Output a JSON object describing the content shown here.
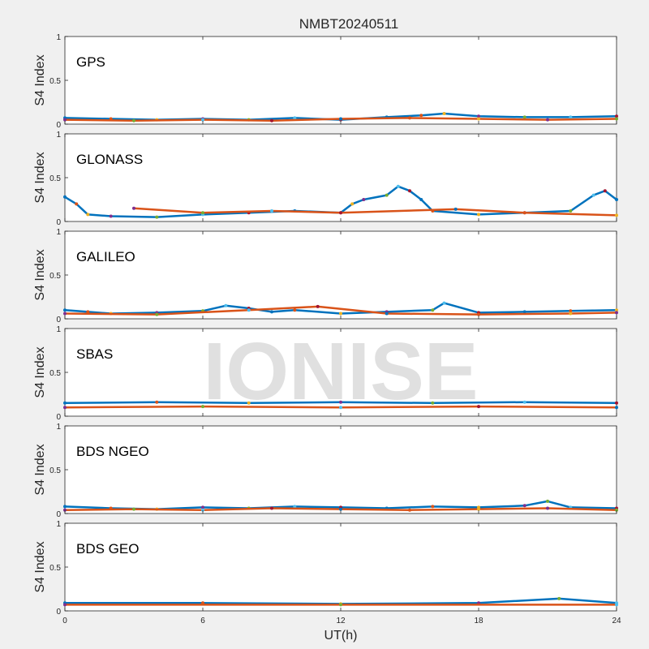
{
  "figure": {
    "title": "NMBT20240511",
    "watermark": "IONISE",
    "xlabel": "UT(h)",
    "ylabel": "S4 Index",
    "xticks": [
      "0",
      "6",
      "12",
      "18",
      "24"
    ],
    "yticks": [
      "0",
      "0.5",
      "1"
    ]
  },
  "colors": [
    "#0072BD",
    "#D95319",
    "#EDB120",
    "#7E2F8E",
    "#77AC30",
    "#4DBEEE",
    "#A2142F"
  ],
  "chart_data": [
    {
      "type": "scatter",
      "title": "GPS",
      "xlabel": "UT(h)",
      "ylabel": "S4 Index",
      "xlim": [
        0,
        24
      ],
      "ylim": [
        0,
        1
      ],
      "series": [
        {
          "x": [
            0,
            2,
            4,
            6,
            8,
            10,
            12,
            14,
            15.5,
            16.5,
            18,
            20,
            22,
            24
          ],
          "y": [
            0.07,
            0.06,
            0.05,
            0.06,
            0.05,
            0.07,
            0.05,
            0.08,
            0.1,
            0.12,
            0.09,
            0.08,
            0.08,
            0.09
          ]
        },
        {
          "x": [
            0,
            3,
            6,
            9,
            12,
            15,
            18,
            21,
            24
          ],
          "y": [
            0.05,
            0.04,
            0.05,
            0.04,
            0.06,
            0.07,
            0.06,
            0.05,
            0.06
          ]
        }
      ]
    },
    {
      "type": "scatter",
      "title": "GLONASS",
      "xlabel": "UT(h)",
      "ylabel": "S4 Index",
      "xlim": [
        0,
        24
      ],
      "ylim": [
        0,
        1
      ],
      "series": [
        {
          "x": [
            0,
            0.5,
            1,
            2,
            4,
            6,
            8,
            10,
            12,
            12.5,
            13,
            14,
            14.5,
            15,
            15.5,
            16,
            18,
            20,
            22,
            23,
            23.5,
            24
          ],
          "y": [
            0.28,
            0.2,
            0.08,
            0.06,
            0.05,
            0.08,
            0.1,
            0.12,
            0.1,
            0.2,
            0.25,
            0.3,
            0.4,
            0.35,
            0.25,
            0.12,
            0.08,
            0.1,
            0.12,
            0.3,
            0.35,
            0.25
          ]
        },
        {
          "x": [
            3,
            6,
            9,
            12,
            17,
            20,
            24
          ],
          "y": [
            0.15,
            0.1,
            0.12,
            0.1,
            0.14,
            0.1,
            0.07
          ]
        }
      ]
    },
    {
      "type": "scatter",
      "title": "GALILEO",
      "xlabel": "UT(h)",
      "ylabel": "S4 Index",
      "xlim": [
        0,
        24
      ],
      "ylim": [
        0,
        1
      ],
      "series": [
        {
          "x": [
            0,
            1,
            2,
            4,
            6,
            7,
            8,
            9,
            10,
            12,
            14,
            16,
            16.5,
            18,
            20,
            22,
            24
          ],
          "y": [
            0.1,
            0.08,
            0.06,
            0.07,
            0.09,
            0.15,
            0.12,
            0.08,
            0.1,
            0.06,
            0.08,
            0.1,
            0.18,
            0.07,
            0.08,
            0.09,
            0.1
          ]
        },
        {
          "x": [
            0,
            4,
            8,
            11,
            14,
            18,
            22,
            24
          ],
          "y": [
            0.06,
            0.05,
            0.1,
            0.14,
            0.06,
            0.05,
            0.06,
            0.07
          ]
        }
      ]
    },
    {
      "type": "scatter",
      "title": "SBAS",
      "xlabel": "UT(h)",
      "ylabel": "S4 Index",
      "xlim": [
        0,
        24
      ],
      "ylim": [
        0,
        1
      ],
      "series": [
        {
          "x": [
            0,
            4,
            8,
            12,
            16,
            20,
            24
          ],
          "y": [
            0.15,
            0.16,
            0.15,
            0.16,
            0.15,
            0.16,
            0.15
          ]
        },
        {
          "x": [
            0,
            6,
            12,
            18,
            24
          ],
          "y": [
            0.1,
            0.11,
            0.1,
            0.11,
            0.1
          ]
        }
      ]
    },
    {
      "type": "scatter",
      "title": "BDS NGEO",
      "xlabel": "UT(h)",
      "ylabel": "S4 Index",
      "xlim": [
        0,
        24
      ],
      "ylim": [
        0,
        1
      ],
      "series": [
        {
          "x": [
            0,
            2,
            4,
            6,
            8,
            10,
            12,
            14,
            16,
            18,
            20,
            21,
            22,
            24
          ],
          "y": [
            0.08,
            0.06,
            0.05,
            0.07,
            0.06,
            0.08,
            0.07,
            0.06,
            0.08,
            0.07,
            0.09,
            0.14,
            0.07,
            0.06
          ]
        },
        {
          "x": [
            0,
            3,
            6,
            9,
            12,
            15,
            18,
            21,
            24
          ],
          "y": [
            0.04,
            0.05,
            0.04,
            0.06,
            0.05,
            0.04,
            0.05,
            0.06,
            0.04
          ]
        }
      ]
    },
    {
      "type": "scatter",
      "title": "BDS GEO",
      "xlabel": "UT(h)",
      "ylabel": "S4 Index",
      "xlim": [
        0,
        24
      ],
      "ylim": [
        0,
        1
      ],
      "series": [
        {
          "x": [
            0,
            6,
            12,
            18,
            21.5,
            24
          ],
          "y": [
            0.09,
            0.09,
            0.08,
            0.09,
            0.14,
            0.09
          ]
        },
        {
          "x": [
            0,
            12,
            24
          ],
          "y": [
            0.07,
            0.07,
            0.07
          ]
        }
      ]
    }
  ]
}
